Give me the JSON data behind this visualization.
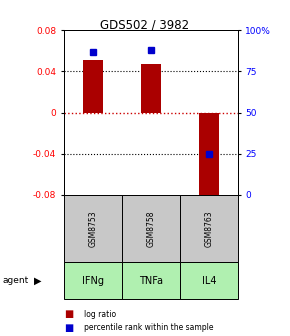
{
  "title": "GDS502 / 3982",
  "samples": [
    "GSM8753",
    "GSM8758",
    "GSM8763"
  ],
  "agents": [
    "IFNg",
    "TNFa",
    "IL4"
  ],
  "log_ratios": [
    0.051,
    0.047,
    -0.085
  ],
  "percentile_ranks": [
    0.87,
    0.88,
    0.25
  ],
  "bar_color": "#aa0000",
  "percentile_color": "#0000cc",
  "ylim_left": [
    -0.08,
    0.08
  ],
  "yticks_left": [
    -0.08,
    -0.04,
    0,
    0.04,
    0.08
  ],
  "ytick_labels_right": [
    "0",
    "25",
    "50",
    "75",
    "100%"
  ],
  "yticks_right": [
    0.0,
    0.25,
    0.5,
    0.75,
    1.0
  ],
  "zero_line_color": "#cc0000",
  "cell_color_gray": "#c8c8c8",
  "agent_color": "#b0f0b0",
  "legend_log_ratio": "log ratio",
  "legend_percentile": "percentile rank within the sample",
  "bar_width": 0.35
}
